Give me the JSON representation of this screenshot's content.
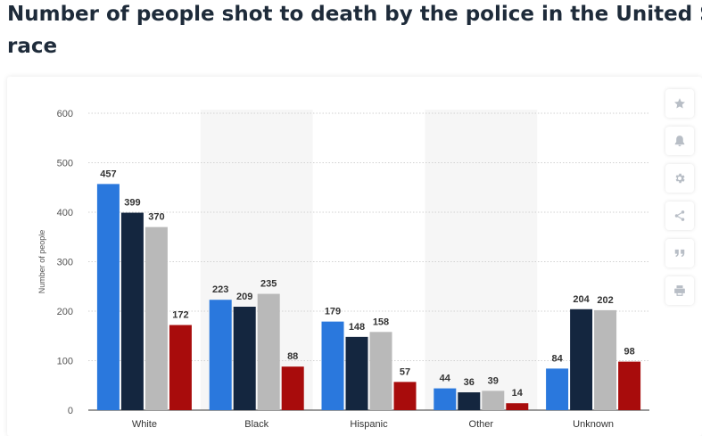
{
  "header": {
    "title_line1": "Number of people shot to death by the police in the United S",
    "title_line2": "race"
  },
  "toolbar": {
    "buttons": [
      {
        "icon": "star-icon",
        "name": "favorite-button"
      },
      {
        "icon": "bell-icon",
        "name": "notification-button"
      },
      {
        "icon": "gear-icon",
        "name": "settings-button"
      },
      {
        "icon": "share-icon",
        "name": "share-button"
      },
      {
        "icon": "quote-icon",
        "name": "citation-button"
      },
      {
        "icon": "print-icon",
        "name": "print-button"
      }
    ]
  },
  "chart_data": {
    "type": "bar",
    "title": "",
    "xlabel": "",
    "ylabel": "Number of people",
    "ylim": [
      0,
      600
    ],
    "yticks": [
      0,
      100,
      200,
      300,
      400,
      500,
      600
    ],
    "grid": true,
    "legend": "none",
    "categories": [
      "White",
      "Black",
      "Hispanic",
      "Other",
      "Unknown"
    ],
    "series": [
      {
        "color": "#2a78dd",
        "values": [
          457,
          223,
          179,
          44,
          84
        ]
      },
      {
        "color": "#14263f",
        "values": [
          399,
          209,
          148,
          36,
          204
        ]
      },
      {
        "color": "#b9b9b9",
        "values": [
          370,
          235,
          158,
          39,
          202
        ]
      },
      {
        "color": "#a80c0c",
        "values": [
          172,
          88,
          57,
          14,
          98
        ]
      }
    ]
  }
}
